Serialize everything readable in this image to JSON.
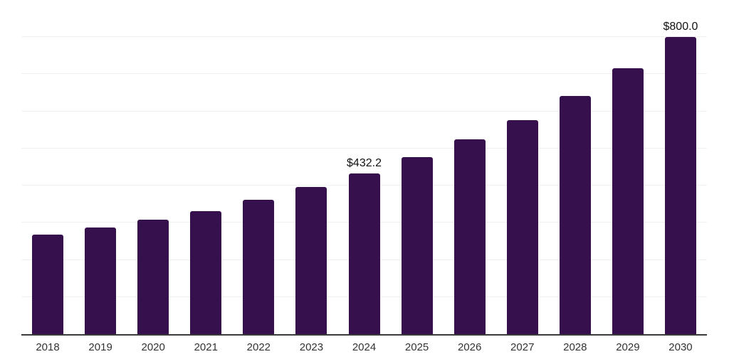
{
  "chart_data": {
    "type": "bar",
    "title": "",
    "xlabel": "",
    "ylabel": "",
    "categories": [
      "2018",
      "2019",
      "2020",
      "2021",
      "2022",
      "2023",
      "2024",
      "2025",
      "2026",
      "2027",
      "2028",
      "2029",
      "2030"
    ],
    "values": [
      268,
      288,
      308,
      332,
      361,
      396,
      432.2,
      476,
      524,
      577,
      642,
      717,
      800
    ],
    "point_labels": [
      "",
      "",
      "",
      "",
      "",
      "",
      "$432.2",
      "",
      "",
      "",
      "",
      "",
      "$800.0"
    ],
    "ylim": [
      0,
      900
    ],
    "grid_step": 100,
    "grid": true,
    "legend": false,
    "y_tick_labels_visible": false,
    "colors": {
      "bar_fill": "#36104D",
      "grid_line": "#f0f0f0",
      "axis_line": "#3a3a3a",
      "x_tick_label": "#333333",
      "point_label": "#111111",
      "background": "#ffffff"
    }
  }
}
